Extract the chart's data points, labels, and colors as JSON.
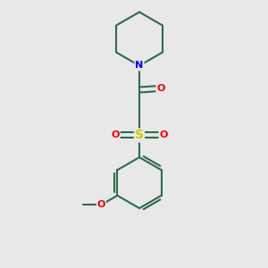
{
  "background_color": "#e8e8e8",
  "bond_color": "#2d6b4a",
  "bond_width": 1.5,
  "atom_colors": {
    "N": "#0000ee",
    "O": "#ee0000",
    "S": "#cccc00",
    "C": "#2d6b4a"
  },
  "figsize": [
    3.0,
    3.0
  ],
  "dpi": 100,
  "xlim": [
    0,
    10
  ],
  "ylim": [
    0,
    10
  ]
}
